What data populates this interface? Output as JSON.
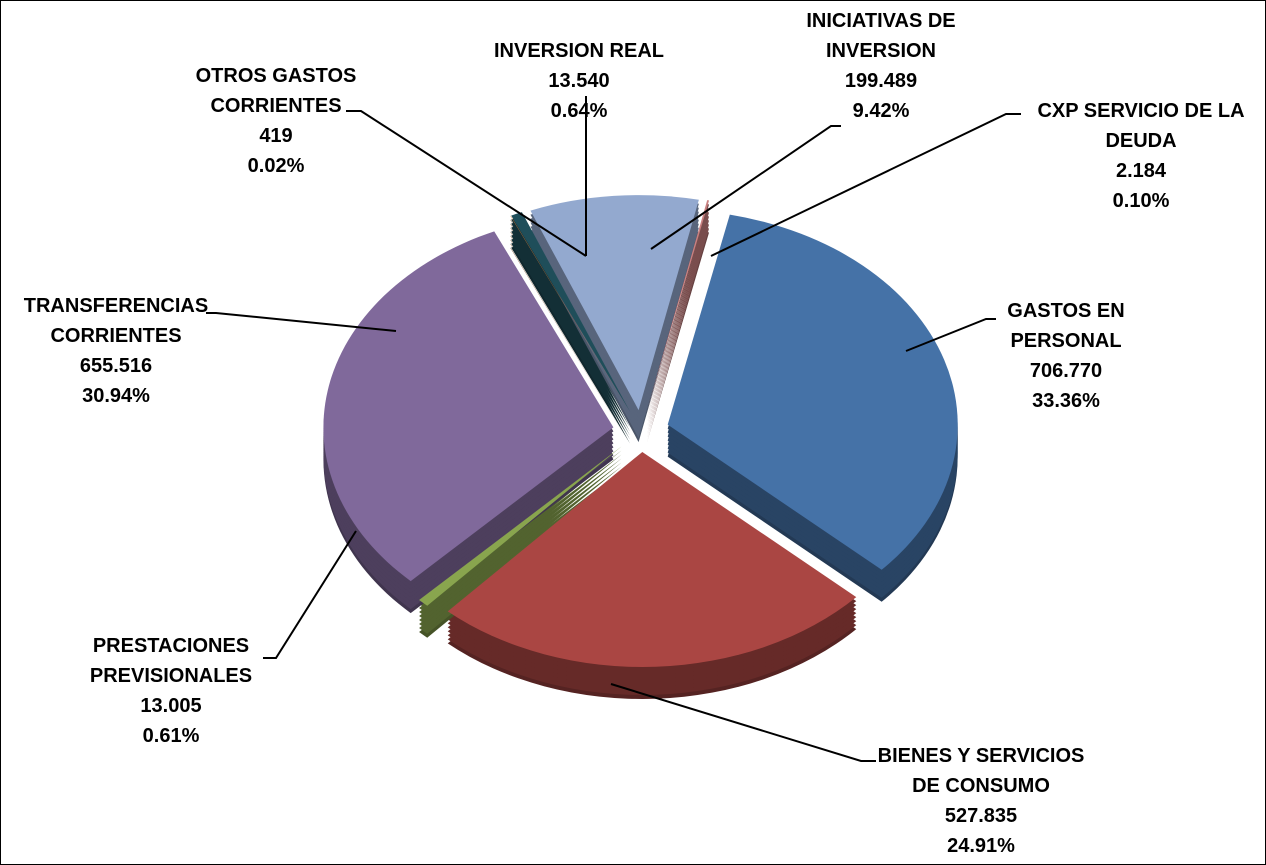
{
  "chart_data": {
    "type": "pie",
    "categories": [
      "CXP SERVICIO DE LA DEUDA",
      "GASTOS EN PERSONAL",
      "BIENES Y SERVICIOS DE CONSUMO",
      "PRESTACIONES PREVISIONALES",
      "TRANSFERENCIAS CORRIENTES",
      "OTROS GASTOS CORRIENTES",
      "INVERSION REAL",
      "INICIATIVAS DE INVERSION"
    ],
    "values": [
      2184,
      706770,
      527835,
      13005,
      655516,
      419,
      13540,
      199489
    ],
    "value_labels": [
      "2.184",
      "706.770",
      "527.835",
      "13.005",
      "655.516",
      "419",
      "13.540",
      "199.489"
    ],
    "percentages": [
      0.1,
      33.36,
      24.91,
      0.61,
      30.94,
      0.02,
      0.64,
      9.42
    ],
    "percentage_labels": [
      "0.10%",
      "33.36%",
      "24.91%",
      "0.61%",
      "30.94%",
      "0.02%",
      "0.64%",
      "9.42%"
    ],
    "colors": [
      "#c98080",
      "#4572a7",
      "#aa4643",
      "#89a54e",
      "#80699b",
      "#db843d",
      "#1f4e5a",
      "#93a9cf"
    ]
  }
}
